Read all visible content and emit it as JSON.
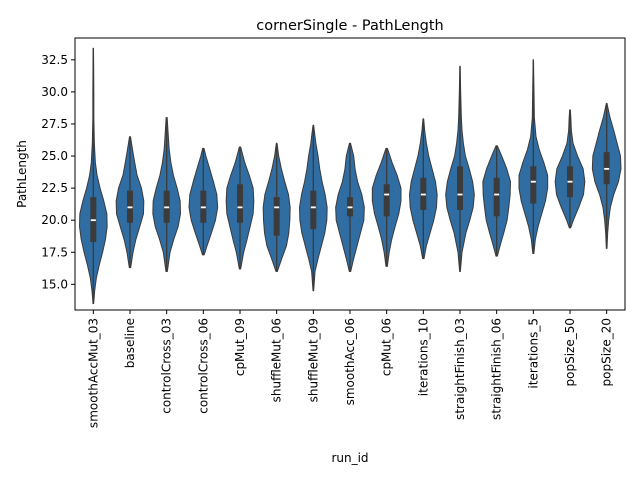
{
  "chart_data": {
    "type": "violin",
    "title": "cornerSingle - PathLength",
    "xlabel": "run_id",
    "ylabel": "PathLength",
    "ylim": [
      13.0,
      34.2
    ],
    "yticks": [
      15.0,
      17.5,
      20.0,
      22.5,
      25.0,
      27.5,
      30.0,
      32.5
    ],
    "grid": false,
    "color": "#2f6da3",
    "categories": [
      "smoothAccMut_03",
      "baseline",
      "controlCross_03",
      "controlCross_06",
      "cpMut_09",
      "shuffleMut_06",
      "shuffleMut_09",
      "smoothAcc_06",
      "cpMut_06",
      "iterations_10",
      "straightFinish_03",
      "straightFinish_06",
      "iterations_5",
      "popSize_50",
      "popSize_20"
    ],
    "violins": [
      {
        "min": 13.5,
        "max": 33.4,
        "q1": 18.3,
        "median": 20.0,
        "q3": 21.8,
        "profile": [
          [
            13.5,
            0.02
          ],
          [
            14.5,
            0.08
          ],
          [
            15.5,
            0.18
          ],
          [
            16.5,
            0.35
          ],
          [
            17.5,
            0.55
          ],
          [
            18.5,
            0.72
          ],
          [
            19.5,
            0.82
          ],
          [
            20.5,
            0.8
          ],
          [
            21.5,
            0.62
          ],
          [
            22.5,
            0.4
          ],
          [
            23.5,
            0.22
          ],
          [
            24.5,
            0.12
          ],
          [
            26,
            0.06
          ],
          [
            28,
            0.03
          ],
          [
            30,
            0.03
          ],
          [
            32,
            0.02
          ],
          [
            33.4,
            0.01
          ]
        ]
      },
      {
        "min": 16.3,
        "max": 26.5,
        "q1": 19.8,
        "median": 21.0,
        "q3": 22.3,
        "profile": [
          [
            16.3,
            0.04
          ],
          [
            17.5,
            0.18
          ],
          [
            18.5,
            0.35
          ],
          [
            19.5,
            0.58
          ],
          [
            20.5,
            0.8
          ],
          [
            21.5,
            0.82
          ],
          [
            22.5,
            0.68
          ],
          [
            23.5,
            0.42
          ],
          [
            24.5,
            0.28
          ],
          [
            25.5,
            0.15
          ],
          [
            26.5,
            0.03
          ]
        ]
      },
      {
        "min": 16.0,
        "max": 28.0,
        "q1": 19.8,
        "median": 21.0,
        "q3": 22.3,
        "profile": [
          [
            16,
            0.04
          ],
          [
            17.5,
            0.2
          ],
          [
            18.5,
            0.42
          ],
          [
            19.5,
            0.68
          ],
          [
            20.5,
            0.82
          ],
          [
            21.5,
            0.8
          ],
          [
            22.5,
            0.62
          ],
          [
            23.5,
            0.4
          ],
          [
            24.5,
            0.25
          ],
          [
            25.5,
            0.15
          ],
          [
            26.5,
            0.1
          ],
          [
            28,
            0.03
          ]
        ]
      },
      {
        "min": 17.3,
        "max": 25.6,
        "q1": 19.8,
        "median": 21.0,
        "q3": 22.3,
        "profile": [
          [
            17.3,
            0.05
          ],
          [
            18,
            0.22
          ],
          [
            19,
            0.48
          ],
          [
            20,
            0.72
          ],
          [
            21,
            0.85
          ],
          [
            22,
            0.8
          ],
          [
            23,
            0.6
          ],
          [
            24,
            0.38
          ],
          [
            25,
            0.15
          ],
          [
            25.6,
            0.04
          ]
        ]
      },
      {
        "min": 16.2,
        "max": 25.7,
        "q1": 19.8,
        "median": 21.0,
        "q3": 22.8,
        "profile": [
          [
            16.2,
            0.04
          ],
          [
            17.5,
            0.22
          ],
          [
            18.5,
            0.42
          ],
          [
            19.5,
            0.6
          ],
          [
            20.5,
            0.78
          ],
          [
            21.5,
            0.82
          ],
          [
            22.5,
            0.78
          ],
          [
            23.5,
            0.55
          ],
          [
            24.5,
            0.28
          ],
          [
            25.7,
            0.04
          ]
        ]
      },
      {
        "min": 16.0,
        "max": 26.0,
        "q1": 18.8,
        "median": 21.0,
        "q3": 21.8,
        "profile": [
          [
            16,
            0.04
          ],
          [
            17,
            0.3
          ],
          [
            18,
            0.58
          ],
          [
            19,
            0.72
          ],
          [
            20,
            0.78
          ],
          [
            21,
            0.8
          ],
          [
            22,
            0.7
          ],
          [
            23,
            0.48
          ],
          [
            24,
            0.28
          ],
          [
            25,
            0.12
          ],
          [
            26,
            0.02
          ]
        ]
      },
      {
        "min": 14.5,
        "max": 27.4,
        "q1": 19.3,
        "median": 21.0,
        "q3": 22.3,
        "profile": [
          [
            14.5,
            0.02
          ],
          [
            16,
            0.1
          ],
          [
            17,
            0.28
          ],
          [
            18,
            0.48
          ],
          [
            19,
            0.68
          ],
          [
            20,
            0.8
          ],
          [
            21,
            0.82
          ],
          [
            22,
            0.7
          ],
          [
            23,
            0.52
          ],
          [
            24,
            0.38
          ],
          [
            25,
            0.28
          ],
          [
            26,
            0.15
          ],
          [
            27.4,
            0.02
          ]
        ]
      },
      {
        "min": 16.0,
        "max": 26.0,
        "q1": 20.3,
        "median": 21.0,
        "q3": 21.8,
        "profile": [
          [
            16,
            0.04
          ],
          [
            17,
            0.22
          ],
          [
            18,
            0.42
          ],
          [
            19,
            0.62
          ],
          [
            20,
            0.82
          ],
          [
            21,
            0.85
          ],
          [
            22,
            0.7
          ],
          [
            23,
            0.45
          ],
          [
            24,
            0.3
          ],
          [
            25,
            0.22
          ],
          [
            26,
            0.03
          ]
        ]
      },
      {
        "min": 16.4,
        "max": 25.6,
        "q1": 20.3,
        "median": 22.0,
        "q3": 22.8,
        "profile": [
          [
            16.4,
            0.04
          ],
          [
            17.5,
            0.15
          ],
          [
            18.5,
            0.3
          ],
          [
            19.5,
            0.5
          ],
          [
            20.5,
            0.72
          ],
          [
            21.5,
            0.85
          ],
          [
            22.5,
            0.85
          ],
          [
            23.5,
            0.62
          ],
          [
            24.5,
            0.32
          ],
          [
            25.6,
            0.04
          ]
        ]
      },
      {
        "min": 17.0,
        "max": 27.9,
        "q1": 20.8,
        "median": 22.0,
        "q3": 23.3,
        "profile": [
          [
            17,
            0.04
          ],
          [
            18,
            0.18
          ],
          [
            19,
            0.4
          ],
          [
            20,
            0.62
          ],
          [
            21,
            0.78
          ],
          [
            22,
            0.82
          ],
          [
            23,
            0.72
          ],
          [
            24,
            0.52
          ],
          [
            25,
            0.32
          ],
          [
            26,
            0.18
          ],
          [
            27,
            0.08
          ],
          [
            27.9,
            0.02
          ]
        ]
      },
      {
        "min": 16.0,
        "max": 32.0,
        "q1": 20.8,
        "median": 22.0,
        "q3": 24.2,
        "profile": [
          [
            16,
            0.02
          ],
          [
            17.5,
            0.12
          ],
          [
            19,
            0.35
          ],
          [
            20,
            0.58
          ],
          [
            21,
            0.78
          ],
          [
            22,
            0.85
          ],
          [
            23,
            0.75
          ],
          [
            24,
            0.55
          ],
          [
            25,
            0.32
          ],
          [
            26,
            0.2
          ],
          [
            27,
            0.12
          ],
          [
            28,
            0.08
          ],
          [
            30,
            0.04
          ],
          [
            32,
            0.01
          ]
        ]
      },
      {
        "min": 17.2,
        "max": 25.8,
        "q1": 20.3,
        "median": 22.0,
        "q3": 23.3,
        "profile": [
          [
            17.2,
            0.04
          ],
          [
            18,
            0.2
          ],
          [
            19,
            0.42
          ],
          [
            20,
            0.62
          ],
          [
            21,
            0.72
          ],
          [
            22,
            0.8
          ],
          [
            23,
            0.82
          ],
          [
            24,
            0.6
          ],
          [
            25,
            0.3
          ],
          [
            25.8,
            0.04
          ]
        ]
      },
      {
        "min": 17.4,
        "max": 32.5,
        "q1": 21.3,
        "median": 23.0,
        "q3": 24.2,
        "profile": [
          [
            17.4,
            0.03
          ],
          [
            18.5,
            0.12
          ],
          [
            19.5,
            0.28
          ],
          [
            20.5,
            0.5
          ],
          [
            21.5,
            0.72
          ],
          [
            22.5,
            0.85
          ],
          [
            23.5,
            0.85
          ],
          [
            24.5,
            0.62
          ],
          [
            25.5,
            0.35
          ],
          [
            26.5,
            0.16
          ],
          [
            28,
            0.06
          ],
          [
            30,
            0.04
          ],
          [
            32.5,
            0.01
          ]
        ]
      },
      {
        "min": 19.4,
        "max": 28.6,
        "q1": 21.8,
        "median": 23.0,
        "q3": 24.2,
        "profile": [
          [
            19.4,
            0.04
          ],
          [
            20,
            0.2
          ],
          [
            21,
            0.52
          ],
          [
            22,
            0.8
          ],
          [
            23,
            0.88
          ],
          [
            24,
            0.78
          ],
          [
            25,
            0.45
          ],
          [
            26,
            0.18
          ],
          [
            27,
            0.08
          ],
          [
            28,
            0.05
          ],
          [
            28.6,
            0.02
          ]
        ]
      },
      {
        "min": 17.8,
        "max": 29.1,
        "q1": 22.8,
        "median": 24.0,
        "q3": 25.3,
        "profile": [
          [
            17.8,
            0.02
          ],
          [
            19,
            0.06
          ],
          [
            20,
            0.12
          ],
          [
            21,
            0.22
          ],
          [
            22,
            0.42
          ],
          [
            23,
            0.7
          ],
          [
            24,
            0.85
          ],
          [
            25,
            0.82
          ],
          [
            26,
            0.62
          ],
          [
            27,
            0.42
          ],
          [
            28,
            0.2
          ],
          [
            29.1,
            0.02
          ]
        ]
      }
    ]
  }
}
